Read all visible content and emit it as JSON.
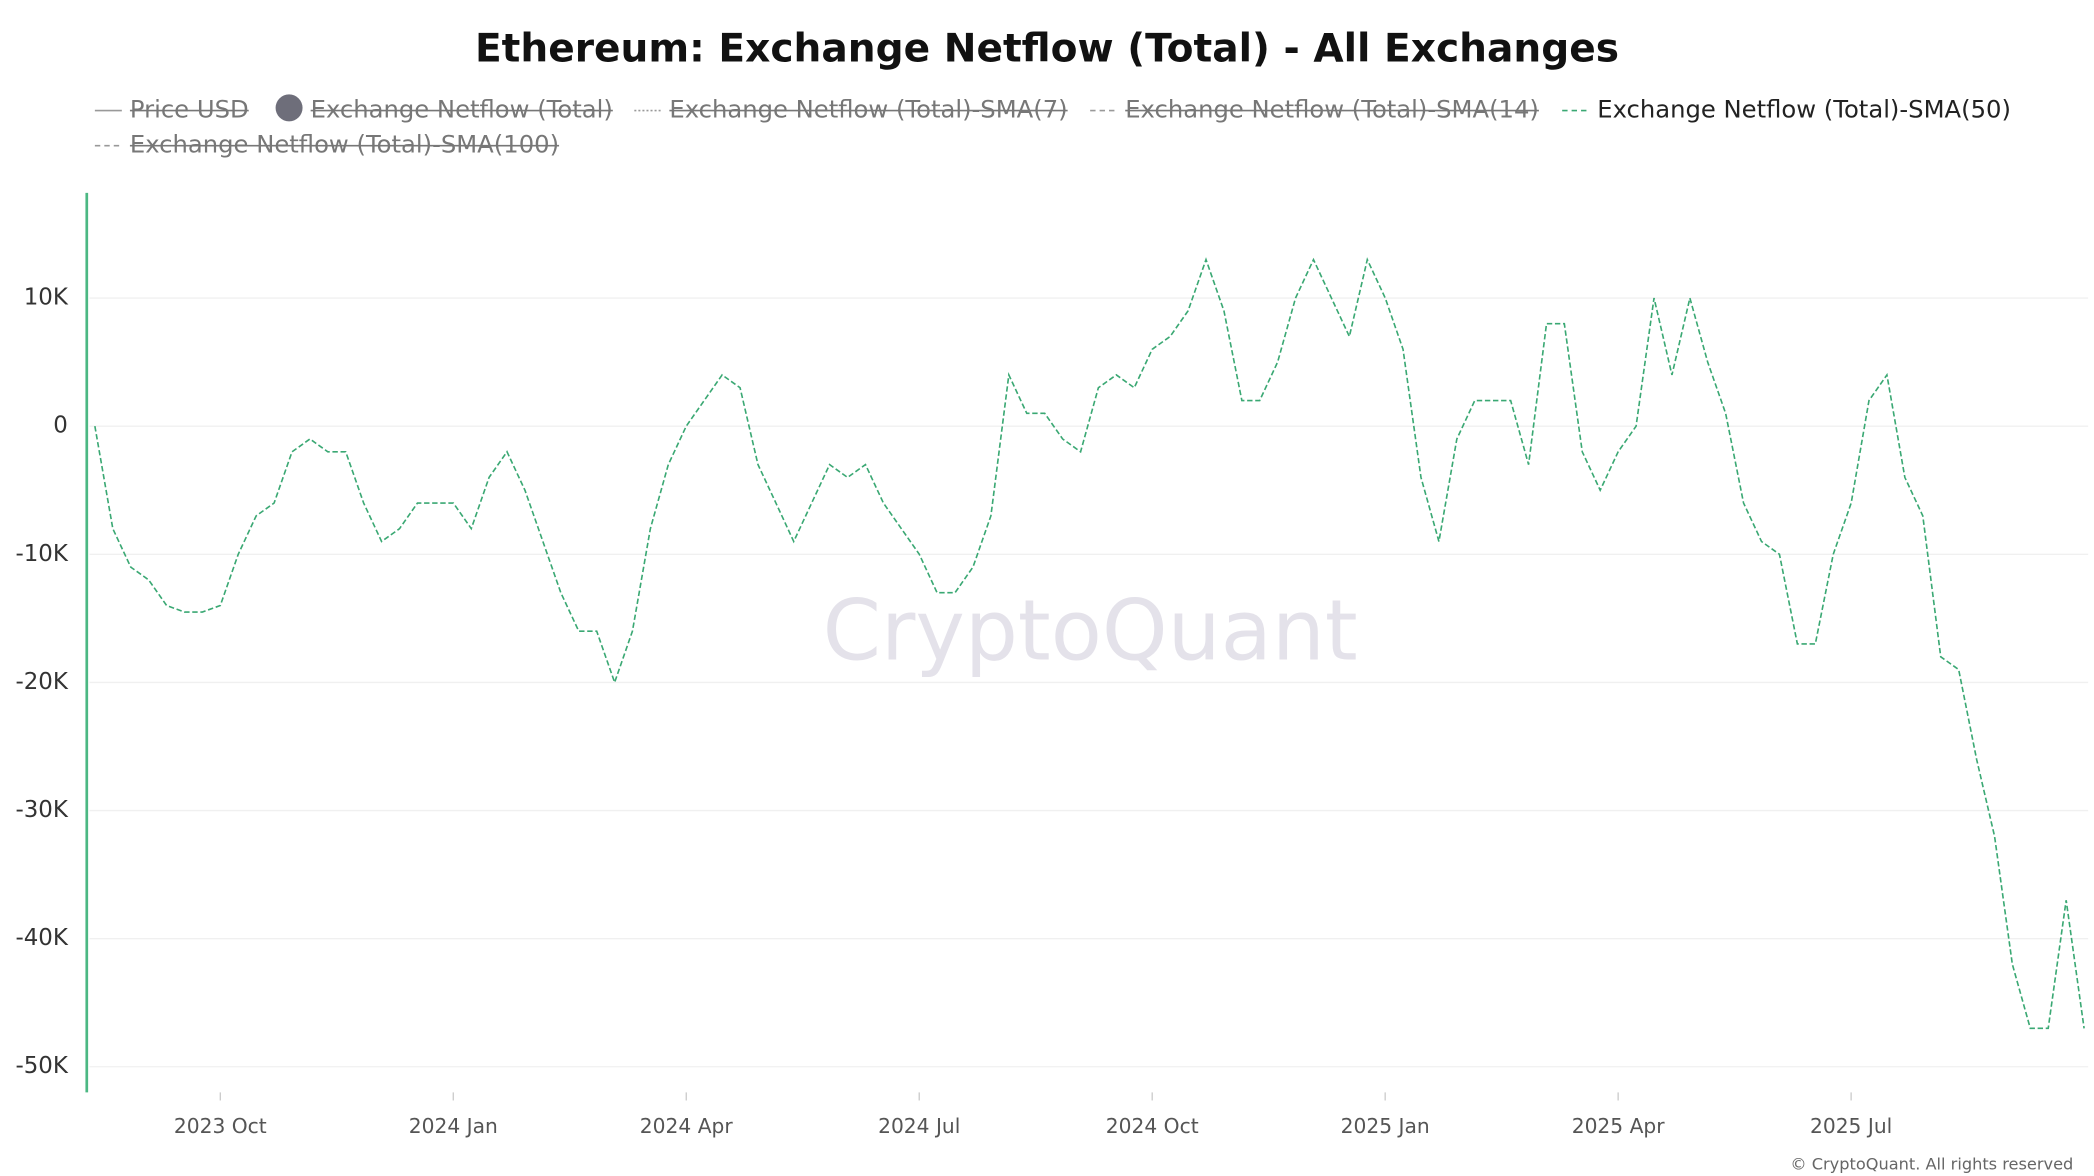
{
  "chart_data": {
    "type": "line",
    "title": "Ethereum: Exchange Netflow (Total) - All Exchanges",
    "legend": [
      {
        "name": "Price USD",
        "hidden": true,
        "marker": "line"
      },
      {
        "name": "Exchange Netflow (Total)",
        "hidden": true,
        "marker": "dot"
      },
      {
        "name": "Exchange Netflow (Total)-SMA(7)",
        "hidden": true,
        "marker": "dotted"
      },
      {
        "name": "Exchange Netflow (Total)-SMA(14)",
        "hidden": true,
        "marker": "dashed"
      },
      {
        "name": "Exchange Netflow (Total)-SMA(50)",
        "hidden": false,
        "marker": "dashed"
      },
      {
        "name": "Exchange Netflow (Total)-SMA(100)",
        "hidden": true,
        "marker": "dashed"
      }
    ],
    "categories": [
      null,
      null,
      null,
      null,
      null,
      null,
      null,
      "2023 Oct",
      null,
      null,
      null,
      null,
      null,
      null,
      null,
      null,
      null,
      null,
      null,
      null,
      "2024 Jan",
      null,
      null,
      null,
      null,
      null,
      null,
      null,
      null,
      null,
      null,
      null,
      null,
      "2024 Apr",
      null,
      null,
      null,
      null,
      null,
      null,
      null,
      null,
      null,
      null,
      null,
      null,
      "2024 Jul",
      null,
      null,
      null,
      null,
      null,
      null,
      null,
      null,
      null,
      null,
      null,
      null,
      "2024 Oct",
      null,
      null,
      null,
      null,
      null,
      null,
      null,
      null,
      null,
      null,
      null,
      null,
      "2025 Jan",
      null,
      null,
      null,
      null,
      null,
      null,
      null,
      null,
      null,
      null,
      null,
      null,
      "2025 Apr",
      null,
      null,
      null,
      null,
      null,
      null,
      null,
      null,
      null,
      null,
      null,
      null,
      "2025 Jul",
      null,
      null,
      null,
      null,
      null,
      null,
      null,
      null,
      null,
      null,
      null,
      null,
      null
    ],
    "series": [
      {
        "name": "Exchange Netflow (Total)-SMA(50)",
        "color": "#3aa873",
        "values": [
          0,
          -8000,
          -11000,
          -12000,
          -14000,
          -14500,
          -14500,
          -14000,
          -10000,
          -7000,
          -6000,
          -2000,
          -1000,
          -2000,
          -2000,
          -6000,
          -9000,
          -8000,
          -6000,
          -6000,
          -6000,
          -8000,
          -4000,
          -2000,
          -5000,
          -9000,
          -13000,
          -16000,
          -16000,
          -20000,
          -16000,
          -8000,
          -3000,
          0,
          2000,
          4000,
          3000,
          -3000,
          -6000,
          -9000,
          -6000,
          -3000,
          -4000,
          -3000,
          -6000,
          -8000,
          -10000,
          -13000,
          -13000,
          -11000,
          -7000,
          4000,
          1000,
          1000,
          -1000,
          -2000,
          3000,
          4000,
          3000,
          6000,
          7000,
          9000,
          13000,
          9000,
          2000,
          2000,
          5000,
          10000,
          13000,
          10000,
          7000,
          13000,
          10000,
          6000,
          -4000,
          -9000,
          -1000,
          2000,
          2000,
          2000,
          -3000,
          8000,
          8000,
          -2000,
          -5000,
          -2000,
          0,
          10000,
          4000,
          10000,
          5000,
          1000,
          -6000,
          -9000,
          -10000,
          -17000,
          -17000,
          -10000,
          -6000,
          2000,
          4000,
          -4000,
          -7000,
          -18000,
          -19000,
          -26000,
          -32000,
          -42000,
          -47000,
          -47000,
          -37000,
          -47000
        ]
      }
    ],
    "ylim": [
      -52000,
      18000
    ],
    "yticks": [
      {
        "value": -50000,
        "label": "-50K"
      },
      {
        "value": -40000,
        "label": "-40K"
      },
      {
        "value": -30000,
        "label": "-30K"
      },
      {
        "value": -20000,
        "label": "-20K"
      },
      {
        "value": -10000,
        "label": "-10K"
      },
      0,
      {
        "value": 10000,
        "label": "10K"
      }
    ],
    "grid": true,
    "watermark": "CryptoQuant",
    "copyright": "© CryptoQuant. All rights reserved"
  }
}
